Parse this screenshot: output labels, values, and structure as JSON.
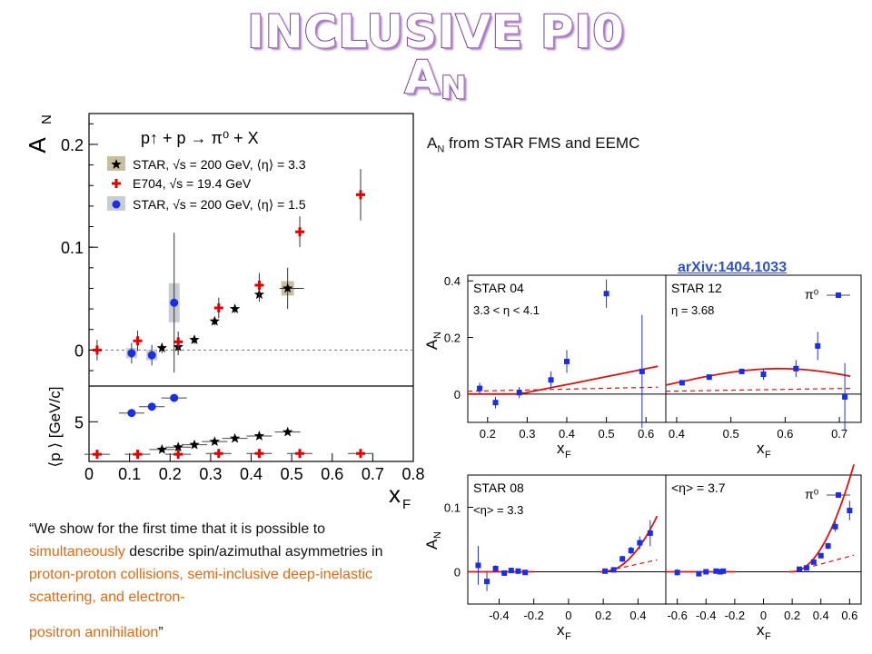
{
  "slide": {
    "title_main": "INCLUSIVE PI0 A",
    "title_sub": "N",
    "desc_a": "A",
    "desc_sub": "N",
    "desc_b": " from STAR FMS and EEMC",
    "arxiv": "arXiv:1404.1033",
    "quote": {
      "p1": "“We show for the first time that it is possible to ",
      "p2": "simultaneously",
      "p3": " describe spin/azimuthal asymmetries in ",
      "p4": "proton-proton collisions, semi-inclusive deep-inelastic scattering, and electron-",
      "p5": "positron annihilation",
      "p6": "”"
    }
  },
  "chart_data": [
    {
      "type": "scatter",
      "ylabel": "A_N",
      "xlabel": "x_F",
      "reaction": "p↑ + p → π⁰ + X",
      "xlim": [
        0,
        0.8
      ],
      "ylim": [
        -0.035,
        0.23
      ],
      "xticks": [
        "0",
        "0.1",
        "0.2",
        "0.3",
        "0.4",
        "0.5",
        "0.6",
        "0.7",
        "0.8"
      ],
      "yticks": [
        "0",
        "0.1",
        "0.2"
      ],
      "series": [
        {
          "name": "STAR, √s = 200 GeV, ⟨η⟩ = 3.3",
          "marker": "star",
          "color": "#000000",
          "x": [
            0.18,
            0.22,
            0.26,
            0.31,
            0.36,
            0.42,
            0.49
          ],
          "y": [
            0.002,
            0.003,
            0.01,
            0.028,
            0.04,
            0.054,
            0.06
          ],
          "err": [
            0.005,
            0.008,
            0.004,
            0.004,
            0.004,
            0.007,
            0.02
          ]
        },
        {
          "name": "E704, √s = 19.4 GeV",
          "marker": "cross",
          "color": "#e00000",
          "x": [
            0.02,
            0.12,
            0.22,
            0.32,
            0.42,
            0.52,
            0.67
          ],
          "y": [
            0.0,
            0.009,
            0.008,
            0.041,
            0.063,
            0.115,
            0.151
          ],
          "err": [
            0.01,
            0.01,
            0.01,
            0.01,
            0.012,
            0.015,
            0.025
          ]
        },
        {
          "name": "STAR, √s = 200 GeV, ⟨η⟩ = 1.5",
          "marker": "circle",
          "color": "#1a2ee6",
          "x": [
            0.105,
            0.155,
            0.21
          ],
          "y": [
            -0.003,
            -0.005,
            0.046
          ],
          "err": [
            0.01,
            0.01,
            0.068
          ]
        }
      ],
      "lower_panel": {
        "ylabel": "⟨p_T⟩ [GeV/c]",
        "ylim": [
          0,
          9.5
        ],
        "yticks": [
          "5"
        ],
        "star": {
          "x": [
            0.18,
            0.22,
            0.26,
            0.31,
            0.36,
            0.42,
            0.49
          ],
          "y": [
            1.5,
            1.8,
            2.1,
            2.5,
            2.9,
            3.2,
            3.7
          ]
        },
        "e704": {
          "x": [
            0.02,
            0.12,
            0.22,
            0.32,
            0.42,
            0.52,
            0.67
          ],
          "y": [
            0.9,
            0.9,
            0.9,
            1.0,
            1.0,
            1.0,
            1.0
          ]
        },
        "circle": {
          "x": [
            0.105,
            0.155,
            0.21
          ],
          "y": [
            6.1,
            6.9,
            8.0
          ]
        }
      }
    },
    {
      "type": "scatter",
      "subplots": [
        {
          "label": "STAR 04",
          "cut": "3.3 < η < 4.1",
          "ylabel": "A_N",
          "xlabel": "x_F",
          "xlim": [
            0.15,
            0.65
          ],
          "ylim": [
            -0.1,
            0.42
          ],
          "xticks": [
            "0.2",
            "0.3",
            "0.4",
            "0.5",
            "0.6"
          ],
          "yticks": [
            "0",
            "0.2",
            "0.4"
          ],
          "x": [
            0.18,
            0.22,
            0.28,
            0.36,
            0.4,
            0.5,
            0.59
          ],
          "y": [
            0.02,
            -0.03,
            0.005,
            0.05,
            0.115,
            0.355,
            0.08
          ],
          "err": [
            0.02,
            0.02,
            0.02,
            0.03,
            0.04,
            0.05,
            0.2
          ]
        },
        {
          "label": "STAR 12",
          "cut": "η = 3.68",
          "legend": "π⁰",
          "xlim": [
            0.38,
            0.74
          ],
          "ylim": [
            -0.1,
            0.42
          ],
          "xticks": [
            "0.4",
            "0.5",
            "0.6",
            "0.7"
          ],
          "x": [
            0.41,
            0.46,
            0.52,
            0.56,
            0.62,
            0.66,
            0.71
          ],
          "y": [
            0.04,
            0.06,
            0.08,
            0.07,
            0.09,
            0.17,
            -0.01
          ],
          "err": [
            0.01,
            0.01,
            0.01,
            0.02,
            0.03,
            0.05,
            0.12
          ]
        },
        {
          "label": "STAR 08",
          "cut": "<η> = 3.3",
          "ylabel": "A_N",
          "xlabel": "x_F",
          "xlim": [
            -0.58,
            0.56
          ],
          "ylim": [
            -0.05,
            0.15
          ],
          "xticks": [
            "-0.4",
            "-0.2",
            "0",
            "0.2",
            "0.4"
          ],
          "yticks": [
            "0",
            "0.1"
          ],
          "x": [
            -0.52,
            -0.47,
            -0.42,
            -0.37,
            -0.33,
            -0.29,
            -0.25,
            0.21,
            0.26,
            0.31,
            0.36,
            0.41,
            0.47
          ],
          "y": [
            0.01,
            -0.015,
            0.005,
            -0.002,
            0.002,
            0.001,
            -0.001,
            0.001,
            0.003,
            0.02,
            0.033,
            0.045,
            0.06
          ],
          "err": [
            0.03,
            0.015,
            0.005,
            0.004,
            0.004,
            0.004,
            0.003,
            0.003,
            0.004,
            0.005,
            0.006,
            0.01,
            0.02
          ]
        },
        {
          "label": "<η> = 3.7",
          "legend": "π⁰",
          "xlim": [
            -0.68,
            0.68
          ],
          "ylim": [
            -0.05,
            0.15
          ],
          "xticks": [
            "-0.6",
            "-0.4",
            "-0.2",
            "0",
            "0.2",
            "0.4",
            "0.6"
          ],
          "x": [
            -0.6,
            -0.45,
            -0.4,
            -0.33,
            -0.3,
            -0.28,
            0.25,
            0.3,
            0.35,
            0.4,
            0.45,
            0.5,
            0.6
          ],
          "y": [
            -0.001,
            -0.003,
            0.0,
            0.001,
            0.0,
            0.001,
            0.004,
            0.006,
            0.015,
            0.025,
            0.04,
            0.07,
            0.095
          ],
          "err": [
            0.005,
            0.004,
            0.003,
            0.003,
            0.003,
            0.003,
            0.003,
            0.003,
            0.003,
            0.004,
            0.005,
            0.008,
            0.015
          ]
        }
      ]
    }
  ]
}
